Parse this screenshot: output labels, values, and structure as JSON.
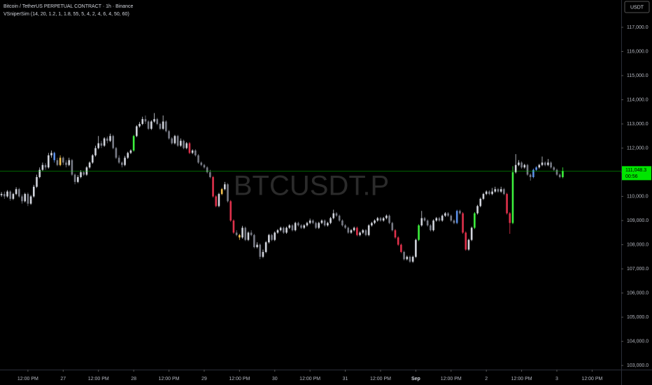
{
  "chart_data": {
    "type": "candlestick",
    "title": "Bitcoin / TetherUS PERPETUAL CONTRACT · 1h · Binance",
    "indicator": "VSniperSim (14, 20, 1.2, 1, 1.8, 55, 5, 4, 2, 4, 6, 4, 50, 60)",
    "watermark": "BTCUSDT.P",
    "currency": "USDT",
    "last_price": {
      "value": 111048.3,
      "label": "111,048.3"
    },
    "countdown": "00:56",
    "last_color": "#00e600",
    "up_color": "#d1d4dc",
    "down_color": "#787b86",
    "signal_colors": {
      "green": "#3cf03c",
      "red": "#e0314b",
      "blue": "#5b8fe8",
      "yellow": "#f5c451"
    },
    "signals": {
      "green": [
        45,
        142,
        161,
        174,
        191
      ],
      "red": [
        64,
        72,
        73,
        78,
        79,
        121,
        134,
        135,
        136,
        157,
        158,
        172,
        173
      ],
      "blue": [
        18,
        155,
        181,
        182
      ],
      "yellow": [
        20,
        75,
        81
      ]
    },
    "ylim": [
      102830,
      118130
    ],
    "yticks": [
      {
        "value": 103000,
        "label": "103,000.0"
      },
      {
        "value": 104000,
        "label": "104,000.0"
      },
      {
        "value": 105000,
        "label": "105,000.0"
      },
      {
        "value": 106000,
        "label": "106,000.0"
      },
      {
        "value": 107000,
        "label": "107,000.0"
      },
      {
        "value": 108000,
        "label": "108,000.0"
      },
      {
        "value": 109000,
        "label": "109,000.0"
      },
      {
        "value": 110000,
        "label": "110,000.0"
      },
      {
        "value": 111000,
        "label": "111,000.0"
      },
      {
        "value": 112000,
        "label": "112,000.0"
      },
      {
        "value": 113000,
        "label": "113,000.0"
      },
      {
        "value": 114000,
        "label": "114,000.0"
      },
      {
        "value": 115000,
        "label": "115,000.0"
      },
      {
        "value": 116000,
        "label": "116,000.0"
      },
      {
        "value": 117000,
        "label": "117,000.0"
      }
    ],
    "xlim": [
      -0.5,
      210.9
    ],
    "xticks": [
      {
        "value": 9,
        "label": "12:00 PM"
      },
      {
        "value": 21,
        "label": "27"
      },
      {
        "value": 33,
        "label": "12:00 PM"
      },
      {
        "value": 45,
        "label": "28"
      },
      {
        "value": 57,
        "label": "12:00 PM"
      },
      {
        "value": 69,
        "label": "29"
      },
      {
        "value": 81,
        "label": "12:00 PM"
      },
      {
        "value": 93,
        "label": "30"
      },
      {
        "value": 105,
        "label": "12:00 PM"
      },
      {
        "value": 117,
        "label": "31"
      },
      {
        "value": 129,
        "label": "12:00 PM"
      },
      {
        "value": 141,
        "label": "Sep"
      },
      {
        "value": 153,
        "label": "12:00 PM"
      },
      {
        "value": 165,
        "label": "2"
      },
      {
        "value": 177,
        "label": "12:00 PM"
      },
      {
        "value": 189,
        "label": "3"
      },
      {
        "value": 201,
        "label": "12:00 PM"
      }
    ],
    "ohlc": [
      [
        110050,
        110180,
        109980,
        110100
      ],
      [
        110100,
        110200,
        109900,
        110000
      ],
      [
        110000,
        110260,
        109950,
        110200
      ],
      [
        110200,
        110250,
        109820,
        109900
      ],
      [
        109900,
        110150,
        109850,
        110100
      ],
      [
        110100,
        110380,
        110050,
        110300
      ],
      [
        110300,
        110350,
        109950,
        110000
      ],
      [
        110000,
        110080,
        109700,
        109800
      ],
      [
        109800,
        110150,
        109750,
        110100
      ],
      [
        110100,
        110160,
        109600,
        109700
      ],
      [
        109700,
        110060,
        109650,
        110000
      ],
      [
        110000,
        110480,
        109950,
        110400
      ],
      [
        110400,
        110900,
        110350,
        110800
      ],
      [
        110800,
        111200,
        110750,
        111100
      ],
      [
        111100,
        111400,
        111050,
        111300
      ],
      [
        111300,
        111380,
        111100,
        111200
      ],
      [
        111200,
        111800,
        111150,
        111700
      ],
      [
        111700,
        111900,
        111600,
        111800
      ],
      [
        111800,
        111850,
        111400,
        111500
      ],
      [
        111500,
        111600,
        111250,
        111300
      ],
      [
        111300,
        111700,
        111250,
        111600
      ],
      [
        111600,
        111650,
        111300,
        111400
      ],
      [
        111400,
        111500,
        111200,
        111300
      ],
      [
        111300,
        111600,
        111250,
        111500
      ],
      [
        111500,
        111550,
        110850,
        110900
      ],
      [
        110900,
        110950,
        110500,
        110600
      ],
      [
        110600,
        110880,
        110550,
        110800
      ],
      [
        110800,
        111080,
        110750,
        111000
      ],
      [
        111000,
        111050,
        110850,
        110900
      ],
      [
        110900,
        111250,
        110850,
        111200
      ],
      [
        111200,
        111450,
        111150,
        111400
      ],
      [
        111400,
        111750,
        111350,
        111700
      ],
      [
        111700,
        112100,
        111650,
        112000
      ],
      [
        112000,
        112500,
        111950,
        112200
      ],
      [
        112200,
        112300,
        112000,
        112100
      ],
      [
        112100,
        112450,
        112050,
        112400
      ],
      [
        112400,
        112480,
        112200,
        112300
      ],
      [
        112300,
        112600,
        112250,
        112500
      ],
      [
        112500,
        112550,
        111950,
        112000
      ],
      [
        112000,
        112050,
        111550,
        111600
      ],
      [
        111600,
        111700,
        111350,
        111400
      ],
      [
        111400,
        111450,
        111200,
        111300
      ],
      [
        111300,
        111680,
        111250,
        111600
      ],
      [
        111600,
        111850,
        111550,
        111800
      ],
      [
        111800,
        111950,
        111750,
        111900
      ],
      [
        111900,
        112550,
        111850,
        112500
      ],
      [
        112500,
        112950,
        112450,
        112900
      ],
      [
        112900,
        113080,
        112850,
        113000
      ],
      [
        113000,
        113300,
        112950,
        113200
      ],
      [
        113200,
        113350,
        113000,
        113100
      ],
      [
        113100,
        113150,
        112750,
        112800
      ],
      [
        112800,
        113150,
        112750,
        113100
      ],
      [
        113100,
        113450,
        113050,
        113200
      ],
      [
        113200,
        113250,
        112950,
        113000
      ],
      [
        113000,
        113050,
        112750,
        112800
      ],
      [
        112800,
        113350,
        112750,
        113100
      ],
      [
        113100,
        113150,
        112650,
        112700
      ],
      [
        112700,
        112750,
        112350,
        112400
      ],
      [
        112400,
        112450,
        112150,
        112200
      ],
      [
        112200,
        112550,
        112150,
        112500
      ],
      [
        112500,
        112550,
        112050,
        112100
      ],
      [
        112100,
        112400,
        112050,
        112300
      ],
      [
        112300,
        112350,
        111950,
        112000
      ],
      [
        112000,
        112250,
        111950,
        112200
      ],
      [
        112200,
        112250,
        111750,
        111800
      ],
      [
        111800,
        111950,
        111750,
        111900
      ],
      [
        111900,
        111950,
        111650,
        111700
      ],
      [
        111700,
        111750,
        111350,
        111400
      ],
      [
        111400,
        111450,
        111250,
        111300
      ],
      [
        111300,
        111350,
        111150,
        111200
      ],
      [
        111200,
        111250,
        110950,
        111000
      ],
      [
        111000,
        111100,
        110750,
        110800
      ],
      [
        110800,
        110850,
        109950,
        110000
      ],
      [
        110000,
        110050,
        109550,
        109600
      ],
      [
        109600,
        110150,
        109550,
        110100
      ],
      [
        110100,
        110350,
        110050,
        110300
      ],
      [
        110300,
        110600,
        110250,
        110500
      ],
      [
        110500,
        110550,
        109750,
        109800
      ],
      [
        109800,
        109850,
        108950,
        109000
      ],
      [
        109000,
        109050,
        108450,
        108500
      ],
      [
        108500,
        108600,
        108350,
        108400
      ],
      [
        108400,
        108450,
        108200,
        108300
      ],
      [
        108300,
        108780,
        108250,
        108700
      ],
      [
        108700,
        108750,
        108150,
        108200
      ],
      [
        108200,
        108550,
        108150,
        108500
      ],
      [
        108500,
        108600,
        108350,
        108400
      ],
      [
        108400,
        108450,
        107850,
        107900
      ],
      [
        107900,
        108100,
        107850,
        108000
      ],
      [
        108000,
        108050,
        107400,
        107500
      ],
      [
        107500,
        107800,
        107450,
        107700
      ],
      [
        107700,
        108150,
        107650,
        108100
      ],
      [
        108100,
        108450,
        108050,
        108400
      ],
      [
        108400,
        108450,
        108150,
        108200
      ],
      [
        108200,
        108550,
        108150,
        108500
      ],
      [
        108500,
        108650,
        108450,
        108600
      ],
      [
        108600,
        108750,
        108550,
        108700
      ],
      [
        108700,
        108750,
        108450,
        108500
      ],
      [
        108500,
        108750,
        108450,
        108700
      ],
      [
        108700,
        108850,
        108650,
        108800
      ],
      [
        108800,
        108850,
        108550,
        108600
      ],
      [
        108600,
        108950,
        108550,
        108900
      ],
      [
        108900,
        108950,
        108750,
        108800
      ],
      [
        108800,
        108850,
        108650,
        108700
      ],
      [
        108700,
        108850,
        108650,
        108800
      ],
      [
        108800,
        108950,
        108750,
        108900
      ],
      [
        108900,
        109080,
        108850,
        109000
      ],
      [
        109000,
        109050,
        108850,
        108900
      ],
      [
        108900,
        108950,
        108650,
        108700
      ],
      [
        108700,
        108950,
        108650,
        108900
      ],
      [
        108900,
        109050,
        108850,
        109000
      ],
      [
        109000,
        109050,
        108750,
        108800
      ],
      [
        108800,
        108950,
        108750,
        108900
      ],
      [
        108900,
        109150,
        108850,
        109100
      ],
      [
        109100,
        109450,
        109050,
        109300
      ],
      [
        109300,
        109350,
        109150,
        109200
      ],
      [
        109200,
        109250,
        108950,
        109000
      ],
      [
        109000,
        109050,
        108750,
        108800
      ],
      [
        108800,
        108850,
        108650,
        108700
      ],
      [
        108700,
        108750,
        108450,
        108500
      ],
      [
        108500,
        108650,
        108450,
        108600
      ],
      [
        108600,
        108750,
        108550,
        108700
      ],
      [
        108700,
        108750,
        108350,
        108400
      ],
      [
        108400,
        108550,
        108350,
        108500
      ],
      [
        108500,
        108650,
        108450,
        108600
      ],
      [
        108600,
        108650,
        108350,
        108400
      ],
      [
        108400,
        108850,
        108350,
        108800
      ],
      [
        108800,
        108950,
        108750,
        108900
      ],
      [
        108900,
        109050,
        108850,
        109000
      ],
      [
        109000,
        109150,
        108950,
        109100
      ],
      [
        109100,
        109150,
        108950,
        109000
      ],
      [
        109000,
        109150,
        108950,
        109100
      ],
      [
        109100,
        109250,
        109050,
        109200
      ],
      [
        109200,
        109250,
        108850,
        108900
      ],
      [
        108900,
        108950,
        108550,
        108600
      ],
      [
        108600,
        108650,
        108250,
        108300
      ],
      [
        108300,
        108350,
        107950,
        108000
      ],
      [
        108000,
        108050,
        107650,
        107700
      ],
      [
        107700,
        107750,
        107350,
        107400
      ],
      [
        107400,
        107550,
        107350,
        107500
      ],
      [
        107500,
        107550,
        107250,
        107300
      ],
      [
        107300,
        107550,
        107250,
        107500
      ],
      [
        107500,
        108250,
        107450,
        108200
      ],
      [
        108200,
        108850,
        108150,
        108800
      ],
      [
        108800,
        109400,
        108750,
        109100
      ],
      [
        109100,
        109150,
        108950,
        109000
      ],
      [
        109000,
        109050,
        108750,
        108800
      ],
      [
        108800,
        108850,
        108550,
        108600
      ],
      [
        108600,
        109050,
        108550,
        109000
      ],
      [
        109000,
        109150,
        108950,
        109100
      ],
      [
        109100,
        109150,
        108950,
        109000
      ],
      [
        109000,
        109250,
        108950,
        109200
      ],
      [
        109200,
        109350,
        109150,
        109300
      ],
      [
        109300,
        109350,
        109150,
        109200
      ],
      [
        109200,
        109250,
        108950,
        109000
      ],
      [
        109000,
        109050,
        108850,
        108900
      ],
      [
        108900,
        109450,
        108850,
        109400
      ],
      [
        109400,
        109450,
        109250,
        109300
      ],
      [
        109300,
        109350,
        108450,
        108500
      ],
      [
        108500,
        108550,
        107750,
        107800
      ],
      [
        107800,
        108250,
        107750,
        108200
      ],
      [
        108200,
        108750,
        108150,
        108700
      ],
      [
        108700,
        109350,
        108650,
        109300
      ],
      [
        109300,
        109650,
        109250,
        109600
      ],
      [
        109600,
        109950,
        109550,
        109900
      ],
      [
        109900,
        110150,
        109850,
        110100
      ],
      [
        110100,
        110250,
        110050,
        110200
      ],
      [
        110200,
        110250,
        110050,
        110100
      ],
      [
        110100,
        110350,
        110050,
        110200
      ],
      [
        110200,
        110400,
        110150,
        110300
      ],
      [
        110300,
        110350,
        110150,
        110200
      ],
      [
        110200,
        110400,
        110150,
        110300
      ],
      [
        110300,
        110350,
        110050,
        110100
      ],
      [
        110100,
        110150,
        109250,
        109300
      ],
      [
        109300,
        109350,
        108450,
        108900
      ],
      [
        108900,
        111250,
        108850,
        111000
      ],
      [
        111000,
        111750,
        110950,
        111300
      ],
      [
        111300,
        111500,
        111250,
        111400
      ],
      [
        111400,
        111450,
        111150,
        111200
      ],
      [
        111200,
        111350,
        111150,
        111300
      ],
      [
        111300,
        111350,
        110850,
        110900
      ],
      [
        110900,
        110950,
        110650,
        110800
      ],
      [
        110800,
        111150,
        110750,
        111100
      ],
      [
        111100,
        111250,
        111050,
        111200
      ],
      [
        111200,
        111350,
        111150,
        111300
      ],
      [
        111300,
        111650,
        111250,
        111400
      ],
      [
        111400,
        111450,
        111250,
        111300
      ],
      [
        111300,
        111550,
        111250,
        111400
      ],
      [
        111400,
        111450,
        111150,
        111200
      ],
      [
        111200,
        111250,
        111050,
        111100
      ],
      [
        111100,
        111150,
        110850,
        110900
      ],
      [
        110900,
        110950,
        110750,
        110800
      ],
      [
        110800,
        111200,
        110750,
        111048.3
      ]
    ]
  }
}
